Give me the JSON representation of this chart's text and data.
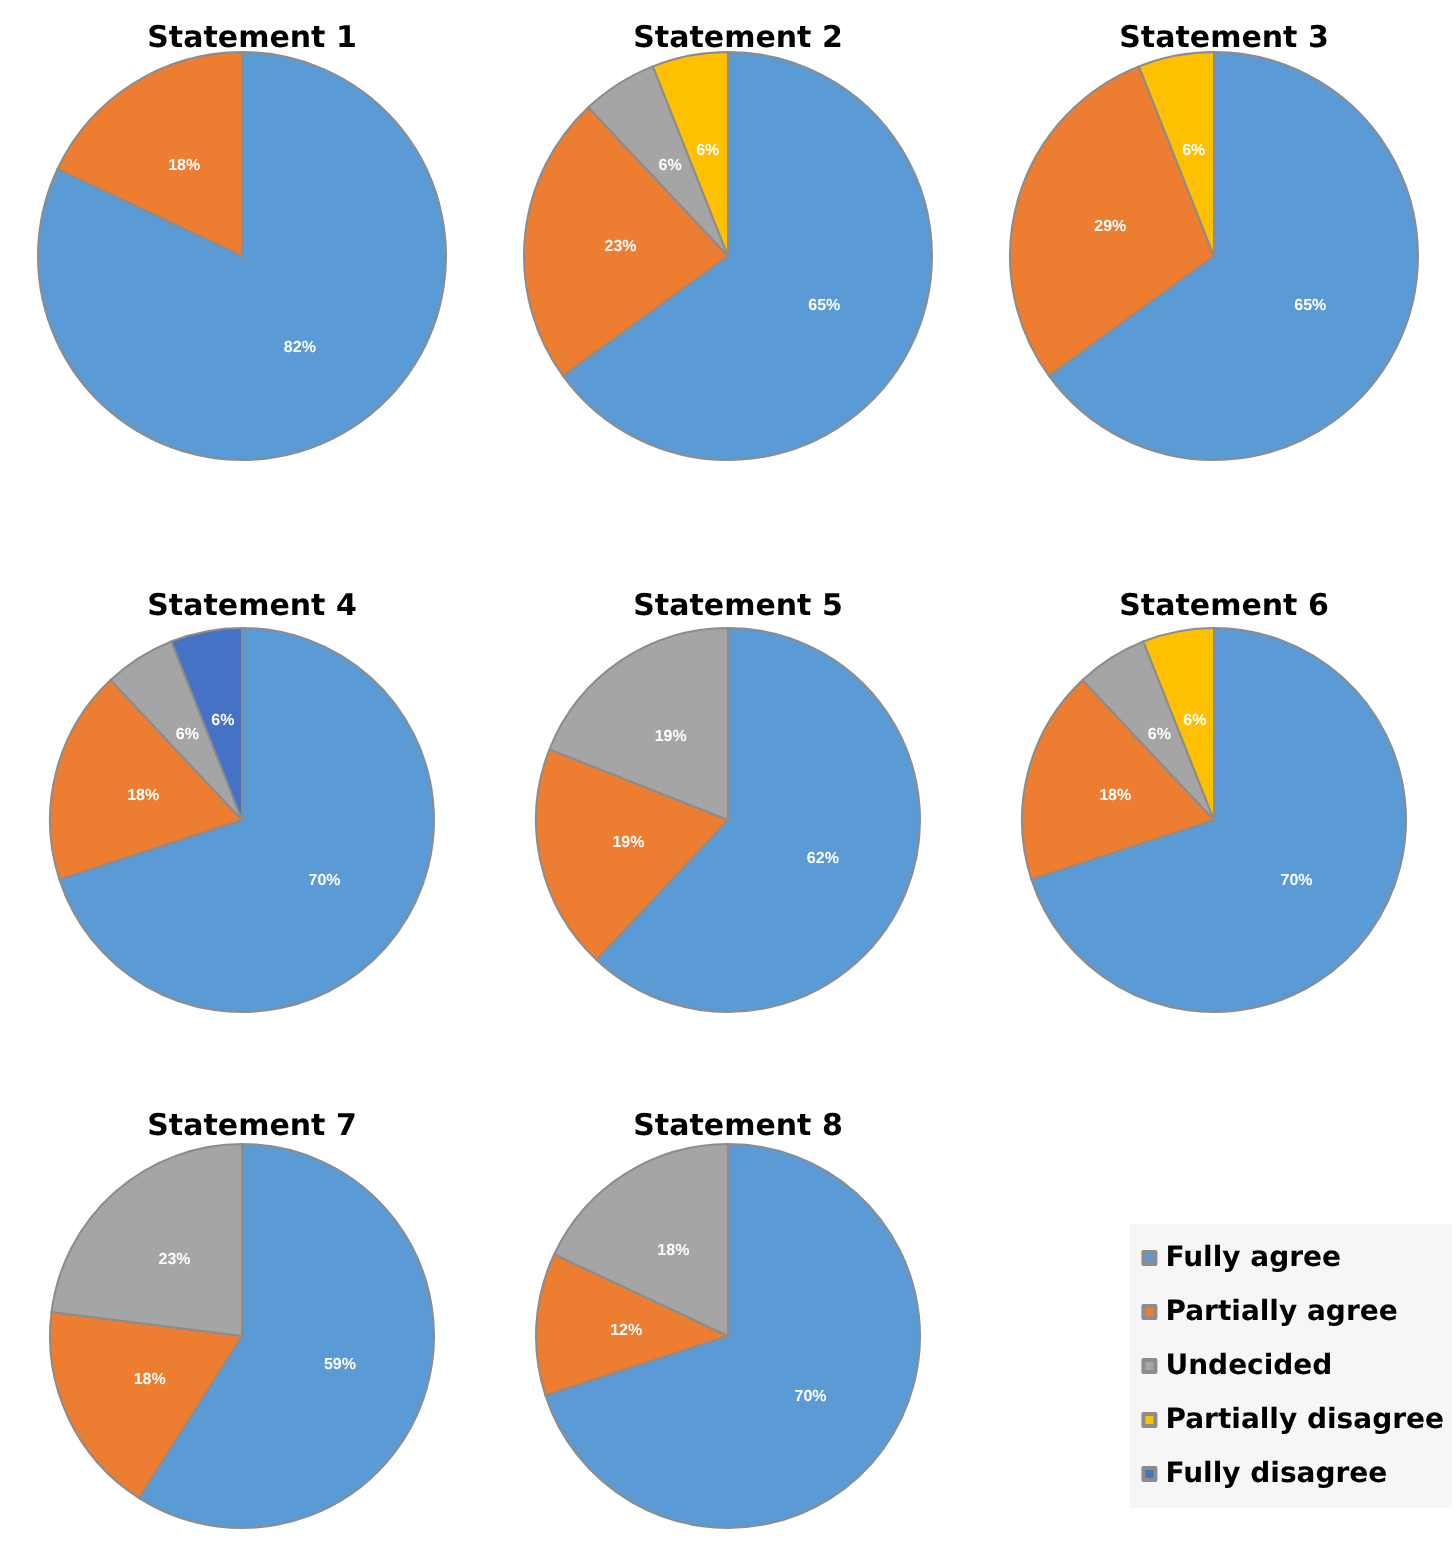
{
  "chart_data": {
    "type": "pie",
    "categories": [
      "Fully agree",
      "Partially agree",
      "Undecided",
      "Partially disagree",
      "Fully disagree"
    ],
    "colors": [
      "#5b9bd5",
      "#ed7d31",
      "#a5a5a5",
      "#ffc000",
      "#4472c4"
    ],
    "legend": "bottom right",
    "series": [
      {
        "name": "Statement 1",
        "values": [
          82,
          18,
          null,
          null,
          null
        ],
        "value_labels": [
          "82%",
          "18%",
          null,
          null,
          null
        ]
      },
      {
        "name": "Statement 2",
        "values": [
          65,
          23,
          6,
          6,
          null
        ],
        "value_labels": [
          "65%",
          "23%",
          "6%",
          "6%",
          null
        ]
      },
      {
        "name": "Statement 3",
        "values": [
          65,
          29,
          null,
          6,
          null
        ],
        "value_labels": [
          "65%",
          "29%",
          null,
          "6%",
          null
        ]
      },
      {
        "name": "Statement 4",
        "values": [
          70,
          18,
          6,
          null,
          6
        ],
        "value_labels": [
          "70%",
          "18%",
          "6%",
          null,
          "6%"
        ]
      },
      {
        "name": "Statement 5",
        "values": [
          62,
          19,
          19,
          null,
          null
        ],
        "value_labels": [
          "62%",
          "19%",
          "19%",
          null,
          null
        ]
      },
      {
        "name": "Statement 6",
        "values": [
          70,
          18,
          6,
          6,
          null
        ],
        "value_labels": [
          "70%",
          "18%",
          "6%",
          "6%",
          null
        ]
      },
      {
        "name": "Statement 7",
        "values": [
          59,
          18,
          23,
          null,
          null
        ],
        "value_labels": [
          "59%",
          "18%",
          "23%",
          null,
          null
        ]
      },
      {
        "name": "Statement 8",
        "values": [
          70,
          12,
          18,
          null,
          null
        ],
        "value_labels": [
          "70%",
          "12%",
          "18%",
          null,
          null
        ]
      }
    ]
  }
}
